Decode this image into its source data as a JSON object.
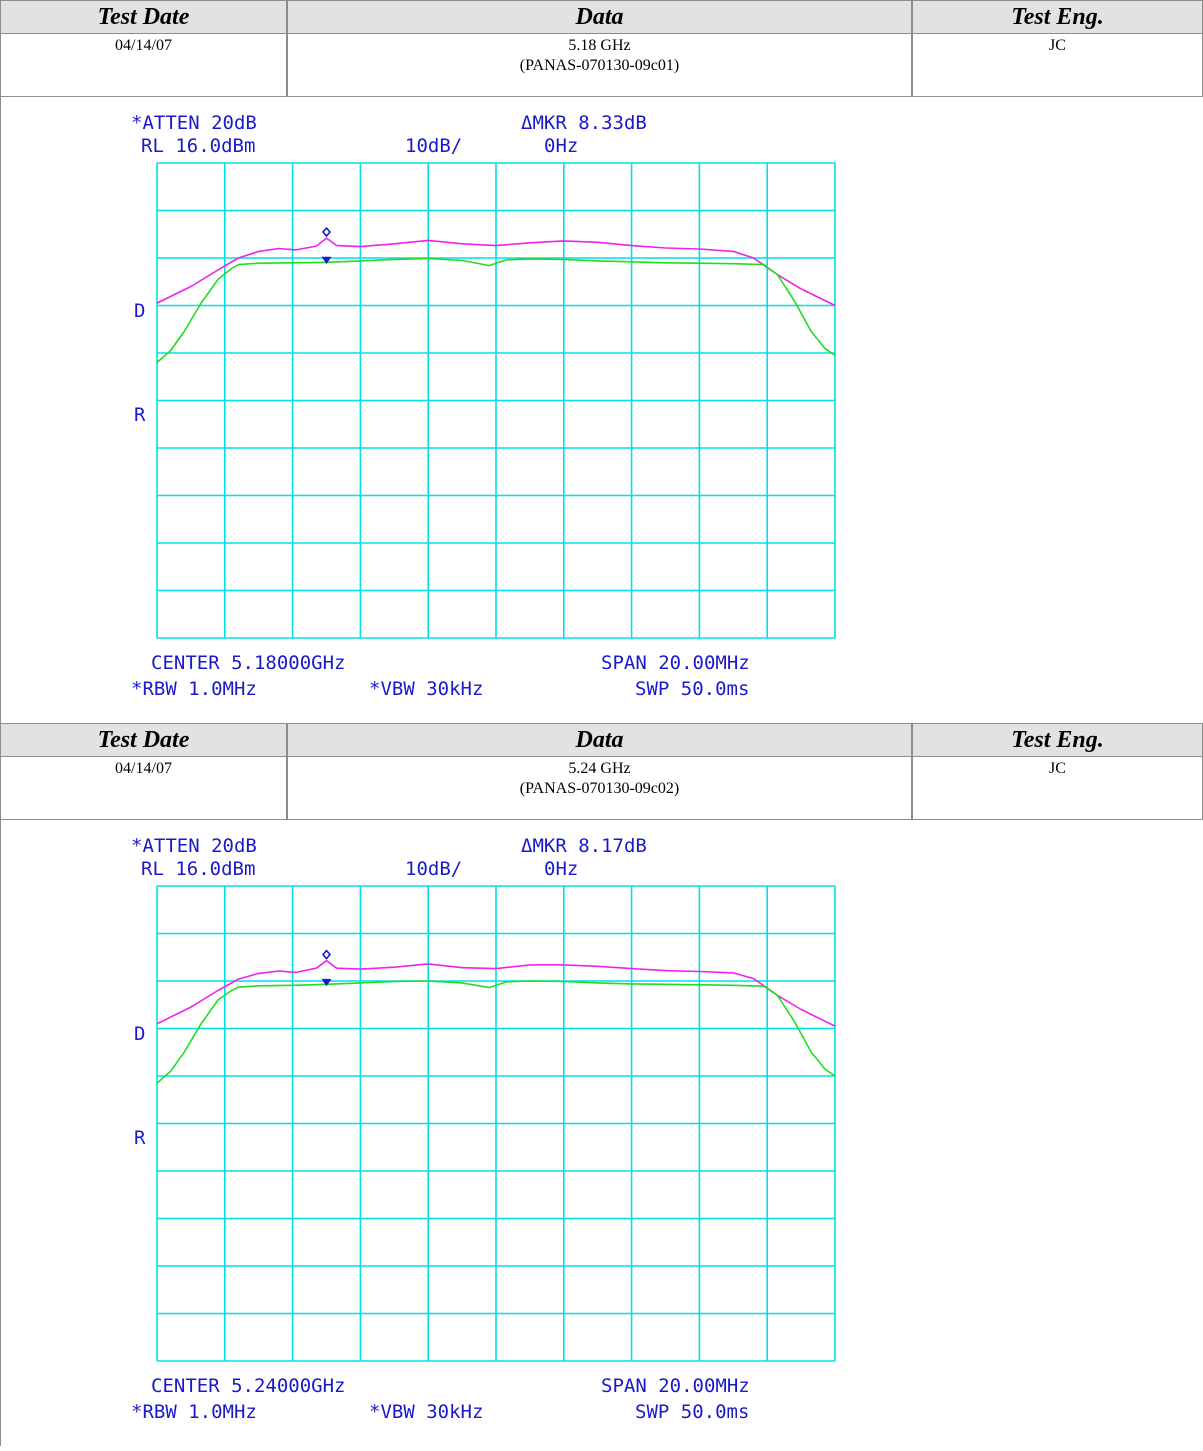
{
  "headers": {
    "test_date": "Test Date",
    "data": "Data",
    "test_eng": "Test Eng."
  },
  "colors": {
    "grid": "#00e0e8",
    "trace_max": "#ee22ee",
    "trace_avg": "#22dd22",
    "annotation": "#1a1acc",
    "marker": "#1a1acc"
  },
  "sections": [
    {
      "date": "04/14/07",
      "freq": "5.18 GHz",
      "id": "(PANAS-070130-09c01)",
      "eng": "JC",
      "annot": {
        "atten": "*ATTEN 20dB",
        "dmkr": "ΔMKR 8.33dB",
        "rl": "RL 16.0dBm",
        "scale": "10dB/",
        "mkr_freq": "0Hz",
        "d": "D",
        "r": "R",
        "center": "CENTER 5.18000GHz",
        "span": "SPAN 20.00MHz",
        "rbw": "*RBW 1.0MHz",
        "vbw": "*VBW 30kHz",
        "swp": "SWP 50.0ms"
      }
    },
    {
      "date": "04/14/07",
      "freq": "5.24 GHz",
      "id": "(PANAS-070130-09c02)",
      "eng": "JC",
      "annot": {
        "atten": "*ATTEN 20dB",
        "dmkr": "ΔMKR 8.17dB",
        "rl": "RL 16.0dBm",
        "scale": "10dB/",
        "mkr_freq": "0Hz",
        "d": "D",
        "r": "R",
        "center": "CENTER 5.24000GHz",
        "span": "SPAN 20.00MHz",
        "rbw": "*RBW 1.0MHz",
        "vbw": "*VBW 30kHz",
        "swp": "SWP 50.0ms"
      }
    }
  ],
  "chart_data": [
    {
      "type": "line",
      "x_unit": "MHz offset from center",
      "xlim": [
        -10,
        10
      ],
      "y_unit": "dBm",
      "ylim": [
        -84,
        16
      ],
      "grid": true,
      "series": [
        {
          "x": [
            -10,
            -9.0,
            -8.2,
            -7.6,
            -7.0,
            -6.4,
            -5.9,
            -5.3,
            -5.0,
            -4.7,
            -4.0,
            -3.0,
            -2.0,
            -1.0,
            0.0,
            1.0,
            2.0,
            3.0,
            4.0,
            5.0,
            6.0,
            7.0,
            7.6,
            8.3,
            9.0,
            10
          ],
          "y": [
            -13.5,
            -10.0,
            -6.5,
            -4.0,
            -2.6,
            -2.0,
            -2.3,
            -1.5,
            0.2,
            -1.4,
            -1.6,
            -1.0,
            -0.3,
            -1.0,
            -1.4,
            -0.8,
            -0.4,
            -0.7,
            -1.4,
            -1.9,
            -2.1,
            -2.6,
            -4.0,
            -7.5,
            -10.5,
            -14.0
          ]
        },
        {
          "x": [
            -10,
            -9.6,
            -9.2,
            -8.7,
            -8.2,
            -7.8,
            -7.6,
            -7.0,
            -6.0,
            -5.0,
            -4.0,
            -3.0,
            -2.0,
            -1.0,
            -0.2,
            0.3,
            1.0,
            2.0,
            3.0,
            4.0,
            5.0,
            6.0,
            7.0,
            7.9,
            8.3,
            8.8,
            9.3,
            9.7,
            10
          ],
          "y": [
            -26.0,
            -23.5,
            -19.5,
            -13.5,
            -8.5,
            -6.2,
            -5.4,
            -5.1,
            -5.0,
            -4.9,
            -4.6,
            -4.3,
            -4.1,
            -4.5,
            -5.6,
            -4.4,
            -4.2,
            -4.3,
            -4.6,
            -4.8,
            -5.0,
            -5.1,
            -5.2,
            -5.4,
            -7.5,
            -13.0,
            -19.5,
            -23.0,
            -24.5
          ]
        }
      ]
    },
    {
      "type": "line",
      "x_unit": "MHz offset from center",
      "xlim": [
        -10,
        10
      ],
      "y_unit": "dBm",
      "ylim": [
        -84,
        16
      ],
      "grid": true,
      "series": [
        {
          "x": [
            -10,
            -9.0,
            -8.2,
            -7.6,
            -7.0,
            -6.4,
            -5.9,
            -5.3,
            -5.0,
            -4.7,
            -4.0,
            -3.0,
            -2.0,
            -1.0,
            0.0,
            1.0,
            2.0,
            3.0,
            4.0,
            5.0,
            6.0,
            7.0,
            7.6,
            8.3,
            9.0,
            10
          ],
          "y": [
            -13.0,
            -9.5,
            -6.0,
            -3.6,
            -2.4,
            -1.9,
            -2.2,
            -1.3,
            0.3,
            -1.3,
            -1.5,
            -1.1,
            -0.4,
            -1.2,
            -1.4,
            -0.6,
            -0.6,
            -0.9,
            -1.4,
            -1.8,
            -2.0,
            -2.3,
            -3.5,
            -7.0,
            -10.0,
            -13.5
          ]
        },
        {
          "x": [
            -10,
            -9.6,
            -9.2,
            -8.7,
            -8.2,
            -7.8,
            -7.6,
            -7.0,
            -6.0,
            -5.0,
            -4.0,
            -3.0,
            -2.0,
            -1.0,
            -0.2,
            0.3,
            1.0,
            2.0,
            3.0,
            4.0,
            5.0,
            6.0,
            7.0,
            7.9,
            8.3,
            8.8,
            9.3,
            9.7,
            10
          ],
          "y": [
            -25.5,
            -23.0,
            -19.0,
            -13.0,
            -8.0,
            -6.0,
            -5.3,
            -5.0,
            -4.9,
            -4.7,
            -4.4,
            -4.1,
            -4.0,
            -4.4,
            -5.4,
            -4.2,
            -4.0,
            -4.1,
            -4.4,
            -4.6,
            -4.7,
            -4.8,
            -4.9,
            -5.1,
            -7.0,
            -12.5,
            -19.0,
            -22.5,
            -24.0
          ]
        }
      ]
    }
  ]
}
